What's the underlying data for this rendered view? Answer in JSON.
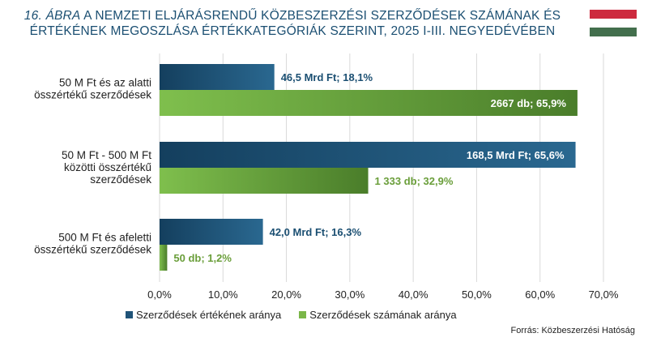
{
  "title": {
    "prefix": "16. ÁBRA",
    "rest": "A NEMZETI ELJÁRÁSRENDŰ KÖZBESZERZÉSI SZERZŐDÉSEK SZÁMÁNAK ÉS ÉRTÉKÉNEK MEGOSZLÁSA ÉRTÉKKATEGÓRIÁK SZERINT, 2025 I-III. NEGYEDÉVÉBEN"
  },
  "flag": {
    "top": "#cd2a3e",
    "middle": "#ffffff",
    "bottom": "#436f4d"
  },
  "colors": {
    "value_series": "#1f5378",
    "count_series": "#7ab648",
    "count_label_outside": "#6a9e3a",
    "value_label_outside": "#1b4f72",
    "grid": "#d9d9d9"
  },
  "source": "Forrás: Közbeszerzési Hatóság",
  "chart_data": {
    "type": "bar",
    "orientation": "horizontal",
    "categories": [
      [
        "50 M Ft és az alatti",
        "összértékű szerződések"
      ],
      [
        "50 M Ft - 500 M Ft",
        "közötti összértékű",
        "szerződések"
      ],
      [
        "500 M Ft  és afeletti",
        "összértékű szerződések"
      ]
    ],
    "series": [
      {
        "name": "Szerződések értékének aránya",
        "values": [
          18.1,
          65.6,
          16.3
        ],
        "labels": [
          "46,5 Mrd Ft; 18,1%",
          "168,5 Mrd Ft;  65,6%",
          "42,0 Mrd Ft; 16,3%"
        ]
      },
      {
        "name": "Szerződések számának aránya",
        "values": [
          65.9,
          32.9,
          1.2
        ],
        "labels": [
          "2667 db; 65,9%",
          "1 333 db; 32,9%",
          "50 db; 1,2%"
        ]
      }
    ],
    "xlim": [
      0,
      70
    ],
    "xticks": [
      0,
      10,
      20,
      30,
      40,
      50,
      60,
      70
    ],
    "xtick_labels": [
      "0,0%",
      "10,0%",
      "20,0%",
      "30,0%",
      "40,0%",
      "50,0%",
      "60,0%",
      "70,0%"
    ],
    "grid": true,
    "legend_position": "bottom-left"
  }
}
